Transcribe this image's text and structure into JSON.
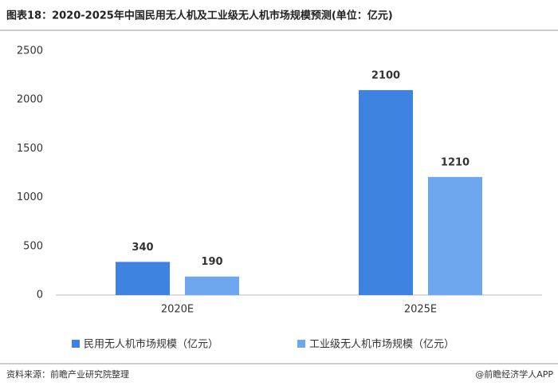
{
  "chart_data": {
    "type": "bar",
    "title": "图表18：2020-2025年中国民用无人机及工业级无人机市场规模预测(单位：亿元)",
    "categories": [
      "2020E",
      "2025E"
    ],
    "series": [
      {
        "name": "民用无人机市场规模（亿元）",
        "color": "#3f83e0",
        "values": [
          340,
          2100
        ]
      },
      {
        "name": "工业级无人机市场规模（亿元）",
        "color": "#6ea7ee",
        "values": [
          190,
          1210
        ]
      }
    ],
    "ylim": [
      0,
      2500
    ],
    "yticks": [
      0,
      500,
      1000,
      1500,
      2000,
      2500
    ],
    "grid": false,
    "source": "资料来源：前瞻产业研究院整理",
    "credit": "@前瞻经济学人APP"
  }
}
